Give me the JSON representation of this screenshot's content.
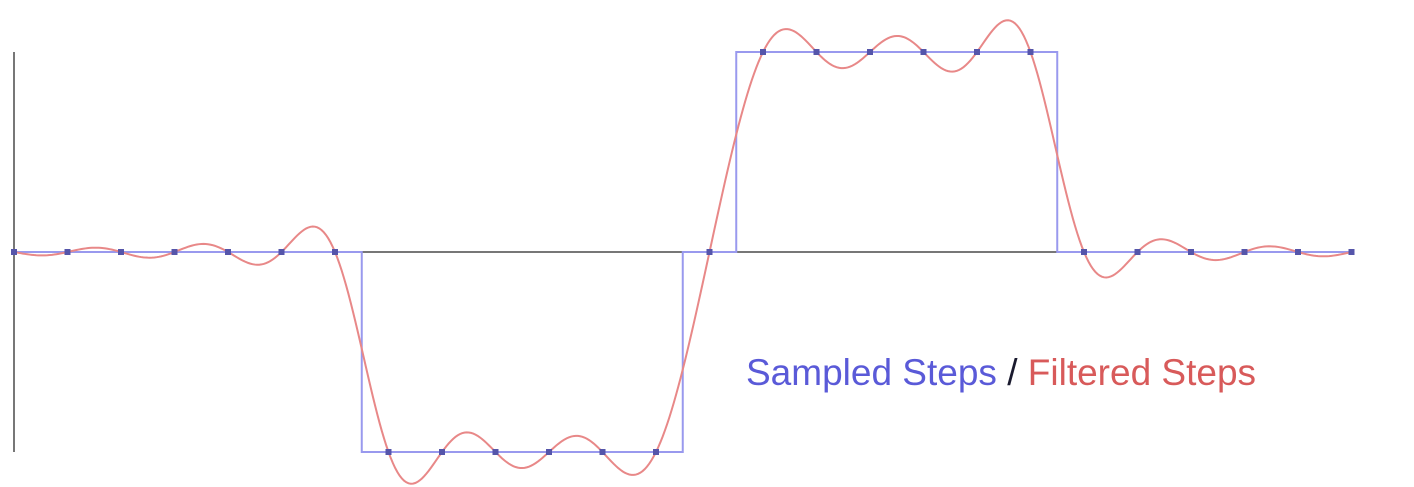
{
  "chart_data": {
    "type": "line",
    "x": [
      0,
      1,
      2,
      3,
      4,
      5,
      6,
      7,
      8,
      9,
      10,
      11,
      12,
      13,
      14,
      15,
      16,
      17,
      18,
      19,
      20,
      21,
      22,
      23,
      24,
      25
    ],
    "series": [
      {
        "name": "Sampled Steps",
        "color": "#9999ee",
        "style": "step",
        "values": [
          0,
          0,
          0,
          0,
          0,
          0,
          0,
          -1,
          -1,
          -1,
          -1,
          -1,
          -1,
          0,
          1,
          1,
          1,
          1,
          1,
          1,
          0,
          0,
          0,
          0,
          0,
          0
        ]
      },
      {
        "name": "Filtered Steps",
        "color": "#e88888",
        "style": "smooth",
        "values": [
          0,
          0,
          0,
          0,
          0,
          0,
          0,
          -1,
          -1,
          -1,
          -1,
          -1,
          -1,
          0,
          1,
          1,
          1,
          1,
          1,
          1,
          0,
          0,
          0,
          0,
          0,
          0
        ]
      }
    ],
    "sample_marker_color": "#5555aa",
    "axis_color": "#777777",
    "ylim": [
      -1.2,
      1.2
    ],
    "xlim": [
      0,
      25
    ],
    "grid": false,
    "legend": "bottom-right"
  },
  "legend": {
    "sampled": "Sampled Steps",
    "separator": "/",
    "filtered": "Filtered Steps"
  }
}
